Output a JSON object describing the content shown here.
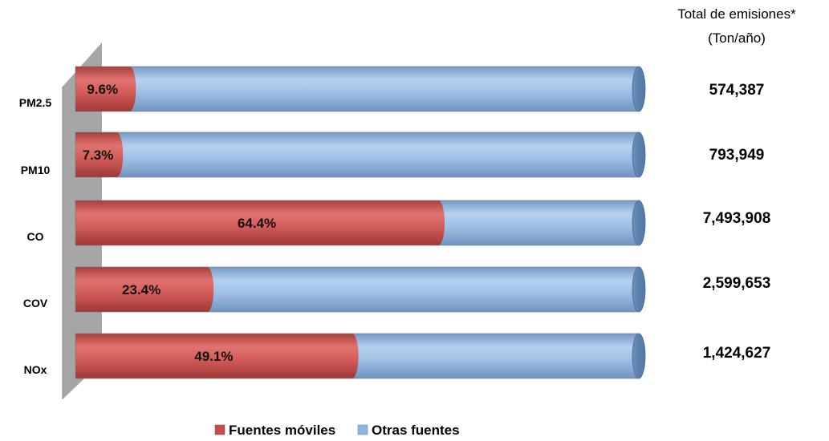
{
  "chart_data": {
    "type": "bar",
    "orientation": "horizontal",
    "stacked": "100%",
    "categories": [
      "PM2.5",
      "PM10",
      "CO",
      "COV",
      "NOx"
    ],
    "series": [
      {
        "name": "Fuentes móviles",
        "values": [
          9.6,
          7.3,
          64.4,
          23.4,
          49.1
        ]
      },
      {
        "name": "Otras fuentes",
        "values": [
          90.4,
          92.7,
          35.6,
          76.6,
          50.9
        ]
      }
    ],
    "value_labels": [
      "9.6%",
      "7.3%",
      "64.4%",
      "23.4%",
      "49.1%"
    ],
    "xlim": [
      0,
      100
    ],
    "totals_title": [
      "Total de emisiones*",
      "(Ton/año)"
    ],
    "totals": [
      "574,387",
      "793,949",
      "7,493,908",
      "2,599,653",
      "1,424,627"
    ],
    "legend_position": "bottom",
    "colors": {
      "Fuentes móviles": "#c0504d",
      "Otras fuentes": "#8db3e2",
      "wall": "#a6a6a6"
    }
  }
}
